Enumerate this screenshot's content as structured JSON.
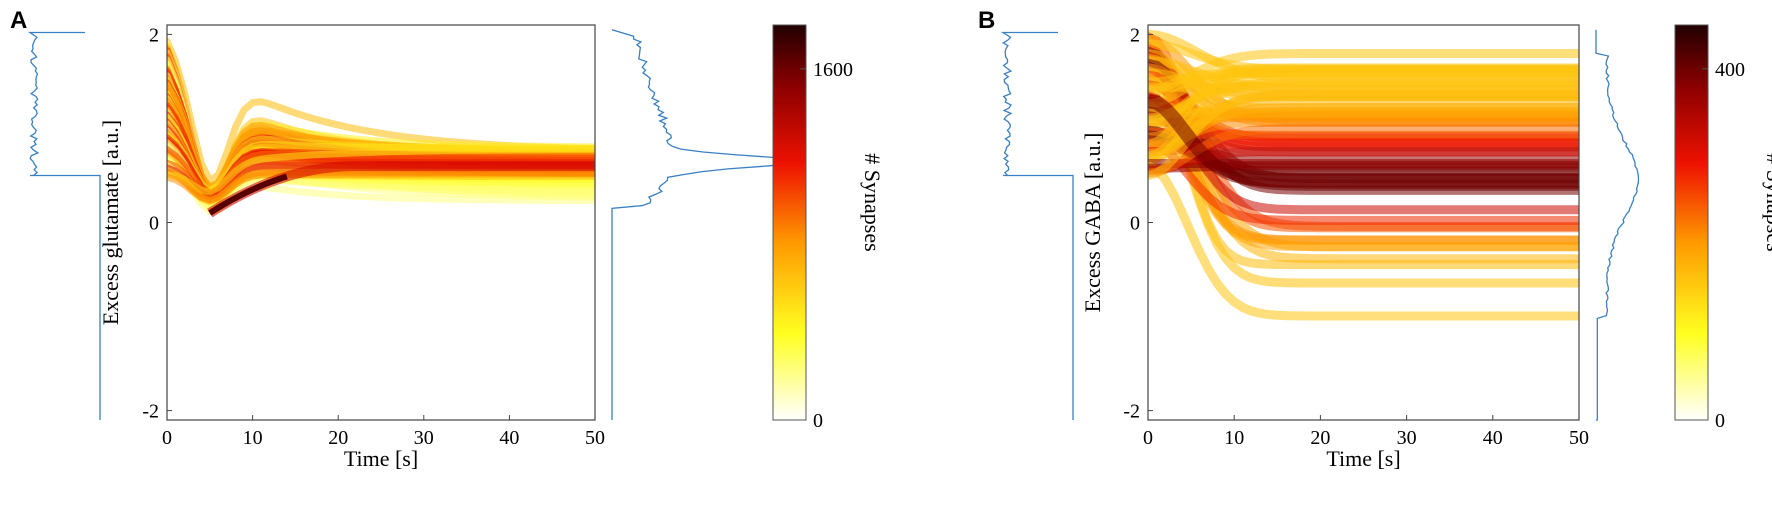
{
  "figure": {
    "panels": [
      "A",
      "B"
    ]
  },
  "chart_data": [
    {
      "type": "heatmap",
      "panel": "A",
      "xlabel": "Time [s]",
      "ylabel": "Excess glutamate [a.u.]",
      "colorbar_label": "# Synapses",
      "xlim": [
        0,
        50
      ],
      "ylim": [
        -2.1,
        2.1
      ],
      "x_ticks": [
        0,
        10,
        20,
        30,
        40,
        50
      ],
      "y_ticks": [
        -2,
        0,
        2
      ],
      "colorbar_ticks": [
        0,
        1600
      ],
      "colorbar_range": [
        0,
        1800
      ],
      "colormap": "hot (white-yellow-red-black)",
      "initial_distribution": "uniform from 0.5 to 2.0",
      "final_distribution": "peak near 0.6, spread 0.2 to 0.8",
      "dense_transient": {
        "t_start": 5,
        "t_end": 22,
        "value_start": 0.1,
        "value_end": 0.6
      },
      "side_histogram_left": "initial values (uniform 0.5–2.0)",
      "side_histogram_right": "final values (peak near 0.65)"
    },
    {
      "type": "heatmap",
      "panel": "B",
      "xlabel": "Time [s]",
      "ylabel": "Excess GABA [a.u.]",
      "colorbar_label": "# Synapses",
      "xlim": [
        0,
        50
      ],
      "ylim": [
        -2.1,
        2.1
      ],
      "x_ticks": [
        0,
        10,
        20,
        30,
        40,
        50
      ],
      "y_ticks": [
        -2,
        0,
        2
      ],
      "colorbar_ticks": [
        0,
        400
      ],
      "colorbar_range": [
        0,
        450
      ],
      "colormap": "hot (white-yellow-red-black)",
      "initial_distribution": "uniform from 0.5 to 2.0",
      "final_distribution": "spread from -1.0 to 1.8, peak near 0.45",
      "side_histogram_left": "initial values (uniform 0.5–2.0)",
      "side_histogram_right": "final values (peak near 0.45)"
    }
  ]
}
